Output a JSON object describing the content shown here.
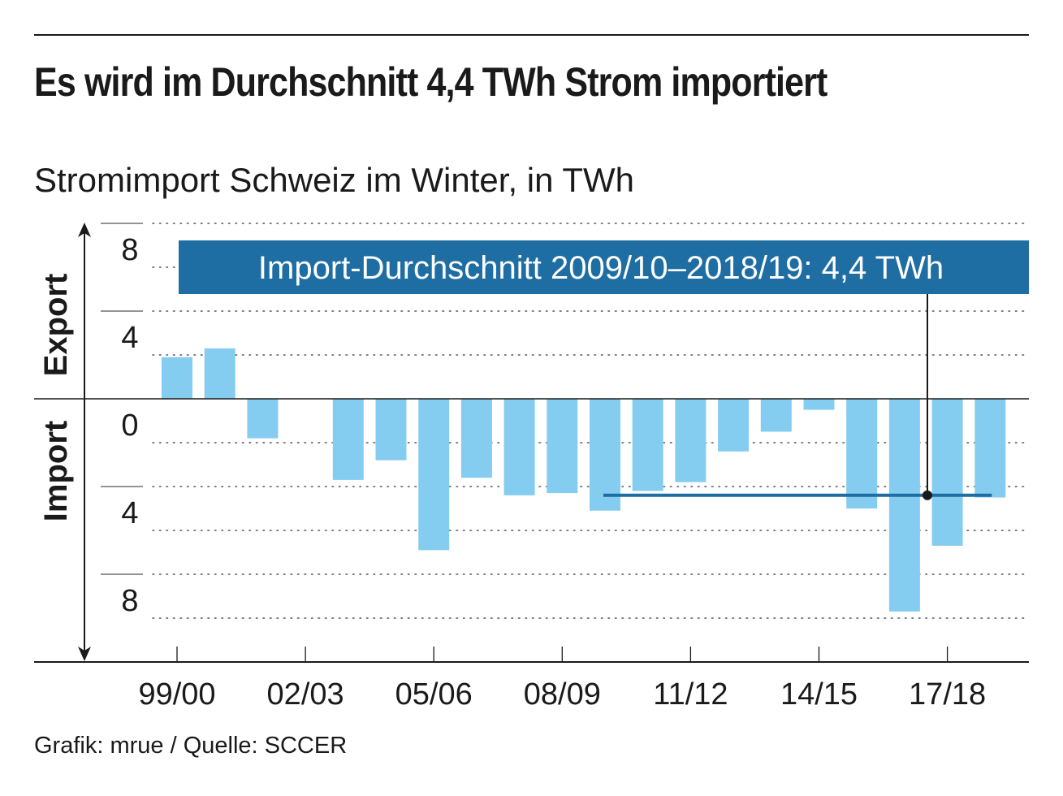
{
  "title": "Es wird im Durchschnitt 4,4 TWh Strom importiert",
  "subtitle": "Stromimport Schweiz im Winter, in TWh",
  "source": "Grafik: mrue / Quelle: SCCER",
  "colors": {
    "bar": "#85cdf0",
    "accent": "#1f6ea3",
    "text": "#1a1a1a",
    "grid": "#555555"
  },
  "chart_data": {
    "type": "bar",
    "title": "Es wird im Durchschnitt 4,4 TWh Strom importiert",
    "subtitle": "Stromimport Schweiz im Winter, in TWh",
    "categories": [
      "99/00",
      "00/01",
      "01/02",
      "02/03",
      "03/04",
      "04/05",
      "05/06",
      "06/07",
      "07/08",
      "08/09",
      "09/10",
      "10/11",
      "11/12",
      "12/13",
      "13/14",
      "14/15",
      "15/16",
      "16/17",
      "17/18",
      "18/19"
    ],
    "category_labels_shown": [
      "99/00",
      "02/03",
      "05/06",
      "08/09",
      "11/12",
      "14/15",
      "17/18"
    ],
    "values": [
      1.9,
      2.3,
      -1.8,
      null,
      -3.7,
      -2.8,
      -6.9,
      -3.6,
      -4.4,
      -4.3,
      -5.1,
      -4.2,
      -3.8,
      -2.4,
      -1.5,
      -0.5,
      -5.0,
      -9.7,
      -6.7,
      -4.5
    ],
    "value_meaning": "positive = Export, negative = Import (TWh)",
    "ylim": [
      -12,
      8
    ],
    "y_ticks": [
      8,
      4,
      0,
      -4,
      -8
    ],
    "y_tick_labels": [
      "8",
      "4",
      "0",
      "4",
      "8"
    ],
    "ylabel_export": "Export",
    "ylabel_import": "Import",
    "average": {
      "label": "Import-Durchschnitt 2009/10–2018/19: 4,4 TWh",
      "value": -4.4,
      "from_category": "09/10",
      "to_category": "18/19"
    }
  }
}
